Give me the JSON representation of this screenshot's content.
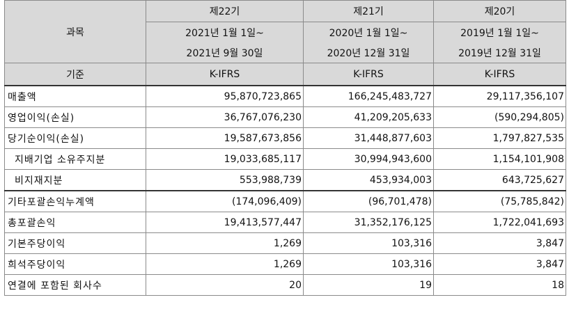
{
  "header": {
    "subject_label": "과목",
    "basis_label": "기준",
    "periods": [
      {
        "name": "제22기",
        "from": "2021년 1월 1일~",
        "to": "2021년 9월 30일",
        "basis": "K-IFRS"
      },
      {
        "name": "제21기",
        "from": "2020년 1월 1일~",
        "to": "2020년 12월 31일",
        "basis": "K-IFRS"
      },
      {
        "name": "제20기",
        "from": "2019년 1월 1일~",
        "to": "2019년 12월 31일",
        "basis": "K-IFRS"
      }
    ]
  },
  "rows": [
    {
      "label": "매출액",
      "values": [
        "95,870,723,865",
        "166,245,483,727",
        "29,117,356,107"
      ]
    },
    {
      "label": "영업이익(손실)",
      "values": [
        "36,767,076,230",
        "41,209,205,633",
        "(590,294,805)"
      ]
    },
    {
      "label": "당기순이익(손실)",
      "values": [
        "19,587,673,856",
        "31,448,877,603",
        "1,797,827,535"
      ]
    },
    {
      "label": "지배기업 소유주지분",
      "values": [
        "19,033,685,117",
        "30,994,943,600",
        "1,154,101,908"
      ]
    },
    {
      "label": "비지재지분",
      "values": [
        "553,988,739",
        "453,934,003",
        "643,725,627"
      ]
    },
    {
      "label": "기타포괄손익누계액",
      "values": [
        "(174,096,409)",
        "(96,701,478)",
        "(75,785,842)"
      ]
    },
    {
      "label": "총포괄손익",
      "values": [
        "19,413,577,447",
        "31,352,176,125",
        "1,722,041,693"
      ]
    },
    {
      "label": "기본주당이익",
      "values": [
        "1,269",
        "103,316",
        "3,847"
      ]
    },
    {
      "label": "희석주당이익",
      "values": [
        "1,269",
        "103,316",
        "3,847"
      ]
    },
    {
      "label": "연결에 포함된 회사수",
      "values": [
        "20",
        "19",
        "18"
      ]
    }
  ]
}
